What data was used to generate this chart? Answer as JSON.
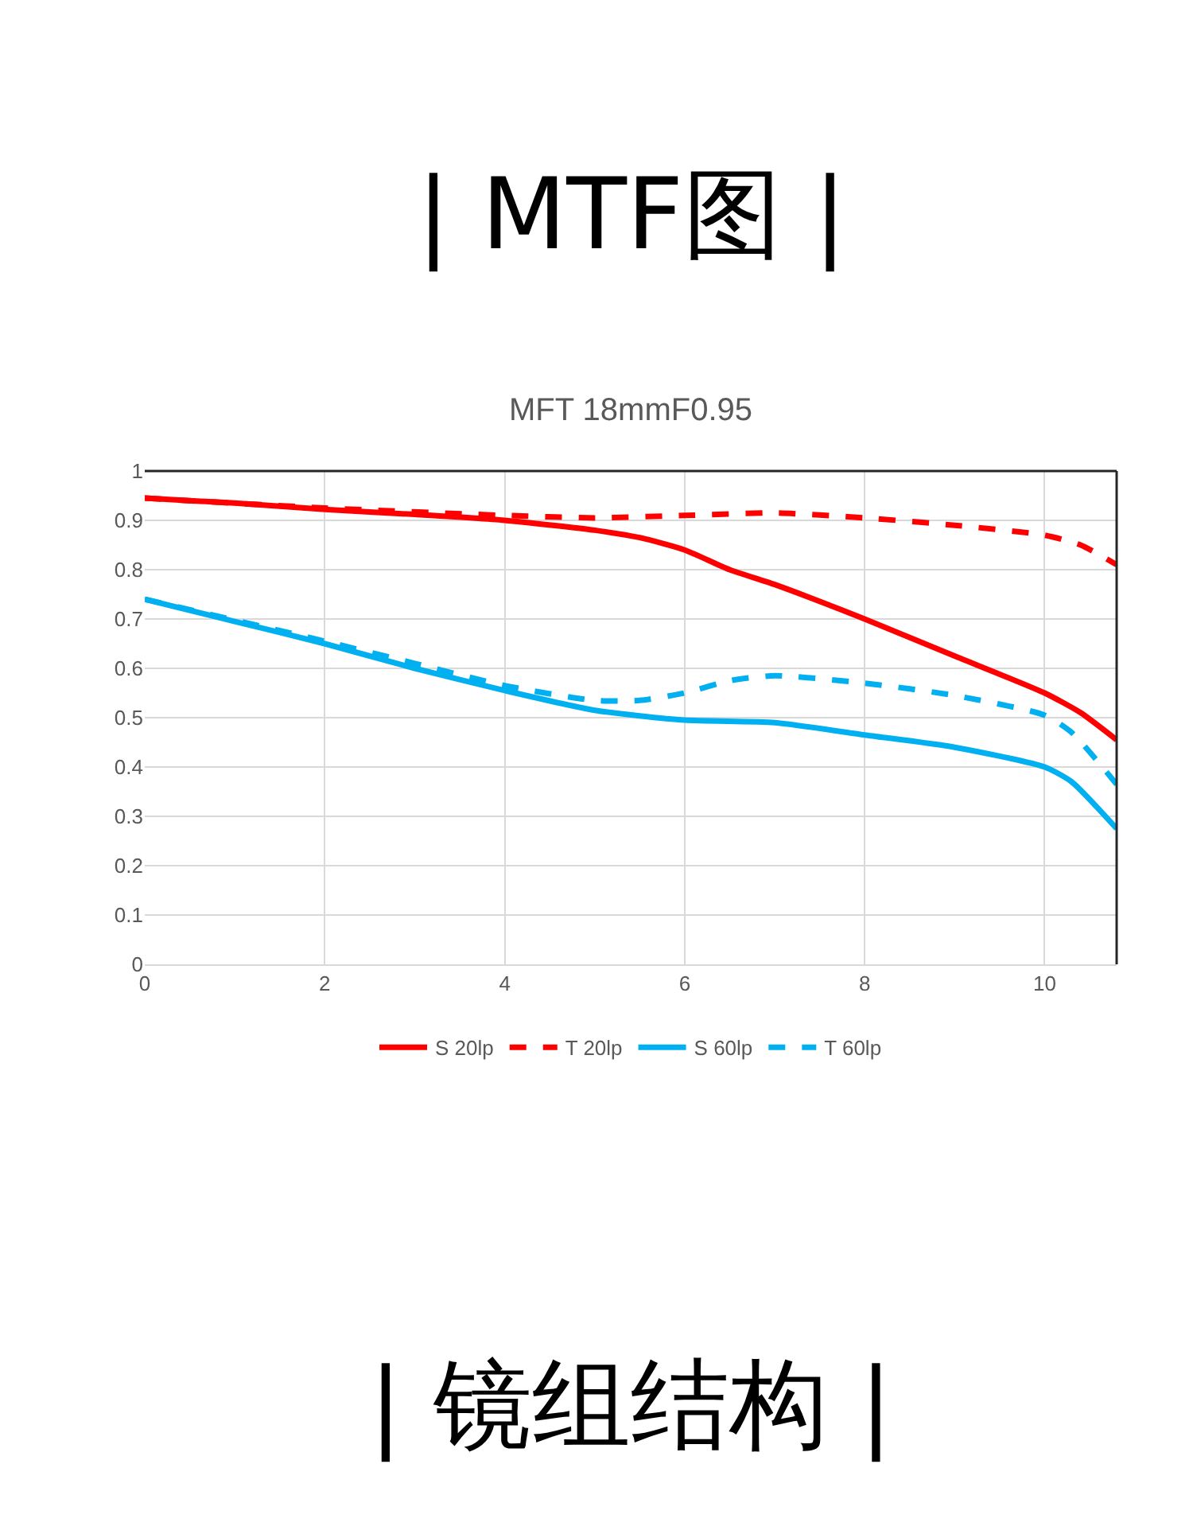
{
  "chart_data": {
    "type": "line",
    "title": "MFT 18mmF0.95",
    "annotations": [
      "| MTF图 |",
      "| 镜组结构 |"
    ],
    "xlim": [
      0,
      10.8
    ],
    "xticks": [
      0,
      2,
      4,
      6,
      8,
      10
    ],
    "ylim": [
      0,
      1
    ],
    "yticks": [
      0,
      0.1,
      0.2,
      0.3,
      0.4,
      0.5,
      0.6,
      0.7,
      0.8,
      0.9,
      1
    ],
    "grid": true,
    "legend": "bottom",
    "marker": "none",
    "series": [
      {
        "name": "S 20lp",
        "color": "#ff0000",
        "line_style": "solid",
        "x": [
          0,
          1,
          2,
          3,
          4,
          5,
          5.5,
          6,
          6.5,
          7,
          8,
          9,
          10,
          10.4,
          10.8
        ],
        "values": [
          0.945,
          0.935,
          0.922,
          0.912,
          0.9,
          0.88,
          0.865,
          0.84,
          0.8,
          0.77,
          0.7,
          0.625,
          0.55,
          0.51,
          0.455
        ]
      },
      {
        "name": "T 20lp",
        "color": "#ff0000",
        "line_style": "dashed",
        "x": [
          0,
          2,
          4,
          5,
          6,
          7,
          8,
          9,
          10,
          10.4,
          10.8
        ],
        "values": [
          0.945,
          0.925,
          0.91,
          0.905,
          0.91,
          0.915,
          0.905,
          0.89,
          0.87,
          0.85,
          0.81
        ]
      },
      {
        "name": "S 60lp",
        "color": "#00b0f0",
        "line_style": "solid",
        "x": [
          0,
          1,
          2,
          3,
          4,
          5,
          6,
          7,
          8,
          9,
          10,
          10.3,
          10.8
        ],
        "values": [
          0.74,
          0.695,
          0.65,
          0.6,
          0.555,
          0.515,
          0.495,
          0.49,
          0.465,
          0.44,
          0.4,
          0.37,
          0.275
        ]
      },
      {
        "name": "T 60lp",
        "color": "#00b0f0",
        "line_style": "dashed",
        "x": [
          0,
          2,
          3,
          4,
          5,
          5.5,
          6,
          6.5,
          7,
          8,
          9,
          10,
          10.3,
          10.8
        ],
        "values": [
          0.74,
          0.655,
          0.61,
          0.565,
          0.535,
          0.535,
          0.55,
          0.575,
          0.585,
          0.57,
          0.545,
          0.505,
          0.47,
          0.365
        ]
      }
    ]
  }
}
